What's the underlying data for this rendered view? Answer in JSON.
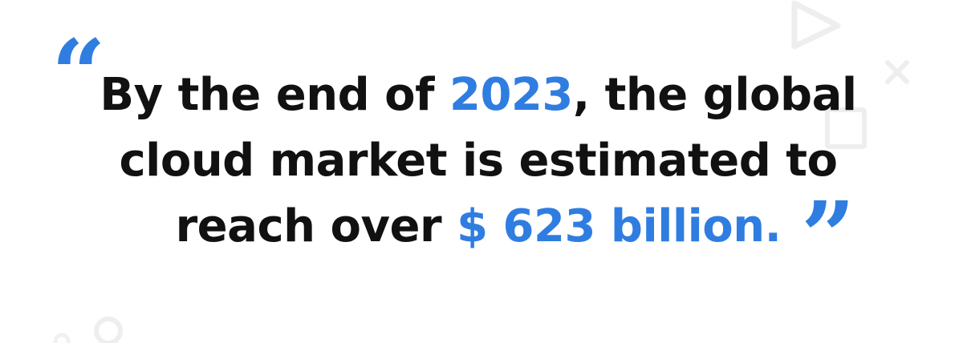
{
  "quote": {
    "open_mark": "“",
    "close_mark": "”",
    "line1_pre": "By the end of ",
    "line1_highlight": "2023",
    "line1_post": ", the global",
    "line2": "cloud market is estimated to",
    "line3_pre": "reach over ",
    "line3_highlight": "$ 623 billion."
  },
  "colors": {
    "accent": "#2f7de1",
    "text": "#111111",
    "decoration": "#eeeeee",
    "background": "#ffffff"
  },
  "icons": [
    "play-triangle-outline-icon",
    "x-cross-icon",
    "square-outline-icon",
    "circle-outline-icon"
  ]
}
